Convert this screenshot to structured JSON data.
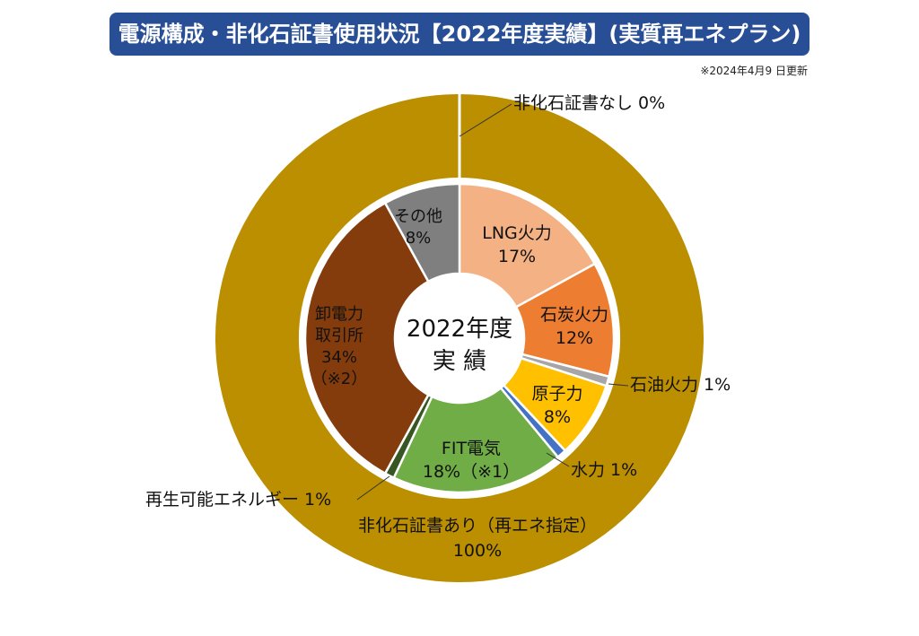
{
  "title": "電源構成・非化石証書使用状況【2022年度実績】(実質再エネプラン)",
  "update_note": "※2024年4月9 日更新",
  "center_label": {
    "line1": "2022年度",
    "line2": "実 績"
  },
  "colors": {
    "title_bg": "#284f96",
    "outer_with_cert": "#bb8f00",
    "outer_without_cert": "#ffffff",
    "lng": "#f4b183",
    "coal": "#ed7d31",
    "oil": "#a6a6a6",
    "nuclear": "#ffc000",
    "hydro": "#4472c4",
    "fit": "#70ad47",
    "renewable": "#375623",
    "jepx": "#843c0c",
    "other": "#7f7f7f"
  },
  "chart_data": [
    {
      "type": "pie",
      "ring": "inner",
      "slices": [
        {
          "key": "lng",
          "label": "LNG火力",
          "value": 17,
          "value_text": "17%",
          "note": ""
        },
        {
          "key": "coal",
          "label": "石炭火力",
          "value": 12,
          "value_text": "12%",
          "note": ""
        },
        {
          "key": "oil",
          "label": "石油火力",
          "value": 1,
          "value_text": "1%",
          "note": ""
        },
        {
          "key": "nuclear",
          "label": "原子力",
          "value": 8,
          "value_text": "8%",
          "note": ""
        },
        {
          "key": "hydro",
          "label": "水力",
          "value": 1,
          "value_text": "1%",
          "note": ""
        },
        {
          "key": "fit",
          "label": "FIT電気",
          "value": 18,
          "value_text": "18%",
          "note": "（※1）"
        },
        {
          "key": "renewable",
          "label": "再生可能エネルギー",
          "value": 1,
          "value_text": "1%",
          "note": ""
        },
        {
          "key": "jepx",
          "label": "卸電力取引所",
          "value": 34,
          "value_text": "34%",
          "note": "（※2）"
        },
        {
          "key": "other",
          "label": "その他",
          "value": 8,
          "value_text": "8%",
          "note": ""
        }
      ]
    },
    {
      "type": "pie",
      "ring": "outer",
      "slices": [
        {
          "key": "without_cert",
          "label": "非化石証書なし",
          "value": 0,
          "value_text": "0%"
        },
        {
          "key": "with_cert",
          "label": "非化石証書あり（再エネ指定）",
          "value": 100,
          "value_text": "100%"
        }
      ]
    }
  ],
  "labels": {
    "lng": [
      "LNG火力",
      "17%"
    ],
    "coal": [
      "石炭火力",
      "12%"
    ],
    "oil": [
      "石油火力 1%"
    ],
    "nuclear": [
      "原子力",
      "8%"
    ],
    "hydro": [
      "水力 1%"
    ],
    "fit": [
      "FIT電気",
      "18%（※1）"
    ],
    "renewable": [
      "再生可能エネルギー 1%"
    ],
    "jepx": [
      "卸電力",
      "取引所",
      "34%",
      "（※2）"
    ],
    "other": [
      "その他",
      "8%"
    ],
    "without_cert": [
      "非化石証書なし 0%"
    ],
    "with_cert": [
      "非化石証書あり（再エネ指定）",
      "100%"
    ]
  }
}
